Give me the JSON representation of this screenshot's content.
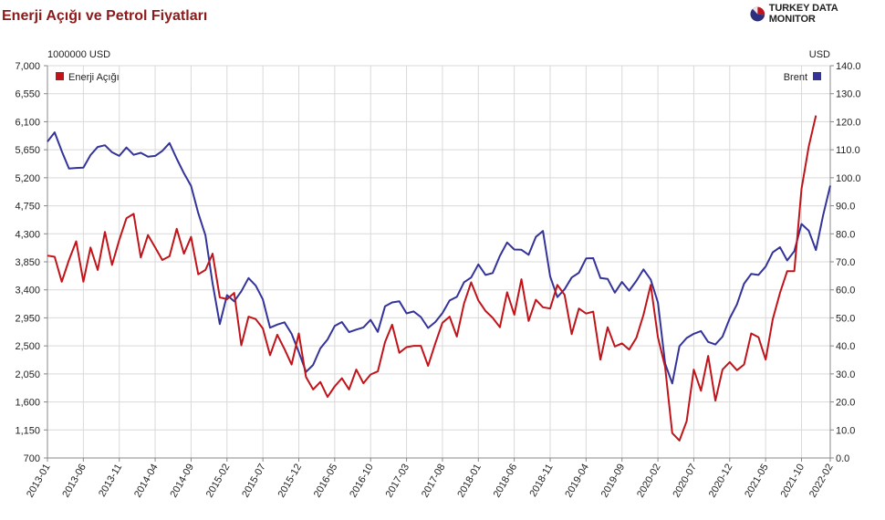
{
  "title": "Enerji Açığı ve Petrol Fiyatları",
  "brand": {
    "name": "TURKEY DATA MONITOR",
    "logo_icon": "pie-logo-icon",
    "logo_colors": [
      "#2b2f7e",
      "#c0141a",
      "#e8e8e8"
    ]
  },
  "colors": {
    "enerji": "#c0141a",
    "brent": "#333399",
    "grid": "#d9d9d9",
    "axis": "#888888"
  },
  "chart_data": {
    "type": "line",
    "title": "Enerji Açığı ve Petrol Fiyatları",
    "left_axis": {
      "unit": "1000000 USD",
      "range": [
        700,
        7000
      ],
      "ticks": [
        "7,000",
        "6,550",
        "6,100",
        "5,650",
        "5,200",
        "4,750",
        "4,300",
        "3,850",
        "3,400",
        "2,950",
        "2,500",
        "2,050",
        "1,600",
        "1,150",
        "700"
      ]
    },
    "right_axis": {
      "unit": "USD",
      "range": [
        0,
        140
      ],
      "ticks": [
        "140.0",
        "130.0",
        "120.0",
        "110.0",
        "100.0",
        "90.0",
        "80.0",
        "70.0",
        "60.0",
        "50.0",
        "40.0",
        "30.0",
        "20.0",
        "10.0",
        "0.0"
      ]
    },
    "x_tick_labels": [
      "2013-01",
      "2013-06",
      "2013-11",
      "2014-04",
      "2014-09",
      "2015-02",
      "2015-07",
      "2015-12",
      "2016-05",
      "2016-10",
      "2017-03",
      "2017-08",
      "2018-01",
      "2018-06",
      "2018-11",
      "2019-04",
      "2019-09",
      "2020-02",
      "2020-07",
      "2020-12",
      "2021-05",
      "2021-10",
      "2022-02"
    ],
    "x_start": "2013-01",
    "x_end": "2022-02",
    "grid": true,
    "series": [
      {
        "name": "Enerji Açığı",
        "axis": "left",
        "legend_position": "top-left",
        "values": [
          3950,
          3930,
          3530,
          3880,
          4180,
          3530,
          4080,
          3720,
          4330,
          3800,
          4200,
          4550,
          4620,
          3920,
          4280,
          4080,
          3880,
          3940,
          4380,
          3980,
          4250,
          3650,
          3720,
          3980,
          3280,
          3250,
          3350,
          2510,
          2970,
          2930,
          2780,
          2350,
          2680,
          2450,
          2200,
          2700,
          2000,
          1800,
          1920,
          1680,
          1850,
          1980,
          1800,
          2120,
          1900,
          2040,
          2090,
          2560,
          2840,
          2390,
          2480,
          2500,
          2500,
          2180,
          2540,
          2870,
          2970,
          2650,
          3180,
          3520,
          3230,
          3060,
          2950,
          2800,
          3360,
          3000,
          3570,
          2900,
          3240,
          3120,
          3100,
          3480,
          3320,
          2690,
          3100,
          3020,
          3050,
          2280,
          2800,
          2490,
          2540,
          2440,
          2630,
          3000,
          3480,
          2640,
          2160,
          1100,
          980,
          1290,
          2120,
          1780,
          2340,
          1620,
          2120,
          2240,
          2110,
          2200,
          2700,
          2640,
          2280,
          2930,
          3350,
          3700,
          3700,
          5020,
          5700,
          6200
        ],
        "last_month": "2021-12"
      },
      {
        "name": "Brent",
        "axis": "right",
        "legend_position": "top-right",
        "values": [
          112.9,
          116.2,
          109.5,
          103.3,
          103.5,
          103.6,
          108.1,
          111.0,
          111.6,
          109.1,
          107.8,
          110.8,
          108.2,
          108.9,
          107.5,
          107.8,
          109.6,
          112.4,
          106.8,
          101.6,
          97.1,
          87.4,
          79.4,
          62.3,
          47.8,
          58.1,
          55.9,
          59.5,
          64.2,
          61.5,
          56.6,
          46.5,
          47.6,
          48.4,
          44.3,
          37.8,
          30.7,
          33.2,
          39.1,
          42.3,
          47.1,
          48.5,
          44.9,
          45.8,
          46.6,
          49.3,
          45.0,
          54.1,
          55.5,
          55.9,
          51.6,
          52.3,
          50.3,
          46.4,
          48.5,
          51.7,
          56.2,
          57.5,
          62.7,
          64.4,
          69.1,
          65.3,
          66.0,
          72.1,
          76.9,
          74.4,
          74.3,
          72.5,
          78.9,
          81.0,
          64.8,
          57.4,
          60.2,
          64.4,
          66.1,
          71.2,
          71.3,
          64.2,
          63.9,
          59.0,
          62.8,
          59.7,
          63.2,
          67.3,
          63.7,
          55.5,
          33.7,
          26.6,
          39.9,
          42.8,
          44.3,
          45.3,
          41.4,
          40.5,
          43.3,
          49.8,
          54.8,
          62.2,
          65.7,
          65.3,
          68.3,
          73.4,
          75.2,
          70.5,
          73.8,
          83.5,
          81.1,
          74.2,
          86.5,
          97.2
        ]
      }
    ]
  }
}
